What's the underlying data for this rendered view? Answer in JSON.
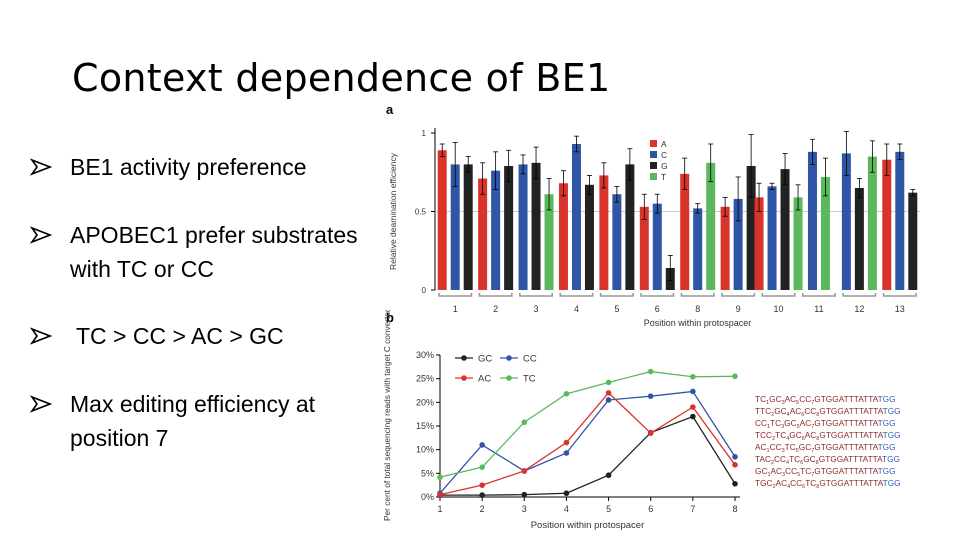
{
  "slide": {
    "title": "Context dependence of BE1",
    "bullets": [
      {
        "lines": [
          "BE1 activity preference"
        ]
      },
      {
        "lines": [
          "APOBEC1 prefer substrates",
          "with TC or CC"
        ]
      },
      {
        "lines": [
          " TC > CC > AC > GC"
        ]
      },
      {
        "lines": [
          "Max editing efficiency at",
          "position 7"
        ]
      }
    ]
  },
  "colors": {
    "A": "#d9342b",
    "C": "#2f56a6",
    "G": "#222222",
    "T": "#5cb85c",
    "bracket": "#999999",
    "seq_black": "#8a2a2a",
    "seq_blue": "#2f5fb0"
  },
  "chart_data": [
    {
      "panel": "a",
      "type": "bar",
      "ylabel": "Relative deamination efficiency",
      "xlabel": "Position within protospacer",
      "ylim": [
        0,
        1
      ],
      "yticks": [
        "0",
        "0.5",
        "1"
      ],
      "groups": [
        "1",
        "2",
        "3",
        "4",
        "5",
        "6",
        "8",
        "9",
        "10",
        "11",
        "12",
        "13"
      ],
      "legend": [
        "A",
        "C",
        "G",
        "T"
      ],
      "series": [
        {
          "name": "A",
          "values": [
            0.89,
            0.71,
            null,
            0.68,
            0.73,
            0.53,
            0.74,
            0.53,
            0.59,
            null,
            null,
            0.83
          ]
        },
        {
          "name": "C",
          "values": [
            0.8,
            0.76,
            0.8,
            0.93,
            0.61,
            0.55,
            0.52,
            0.58,
            0.66,
            0.88,
            0.87,
            0.88
          ]
        },
        {
          "name": "G",
          "values": [
            0.8,
            0.79,
            0.81,
            0.67,
            0.8,
            0.14,
            null,
            0.79,
            0.77,
            null,
            0.65,
            0.62
          ]
        },
        {
          "name": "T",
          "values": [
            null,
            null,
            0.61,
            null,
            null,
            null,
            0.81,
            null,
            0.59,
            0.72,
            0.85,
            null
          ]
        }
      ],
      "errors": [
        {
          "name": "A",
          "values": [
            0.04,
            0.1,
            null,
            0.08,
            0.08,
            0.08,
            0.1,
            0.06,
            0.09,
            null,
            null,
            0.1
          ]
        },
        {
          "name": "C",
          "values": [
            0.14,
            0.12,
            0.06,
            0.05,
            0.05,
            0.06,
            0.03,
            0.14,
            0.02,
            0.08,
            0.14,
            0.05
          ]
        },
        {
          "name": "G",
          "values": [
            0.05,
            0.1,
            0.1,
            0.06,
            0.1,
            0.08,
            null,
            0.2,
            0.1,
            null,
            0.06,
            0.02
          ]
        },
        {
          "name": "T",
          "values": [
            null,
            null,
            0.1,
            null,
            null,
            null,
            0.12,
            null,
            0.08,
            0.12,
            0.1,
            null
          ]
        }
      ]
    },
    {
      "panel": "b",
      "type": "line",
      "ylabel": "Per cent of total sequencing reads with target C converted to T",
      "xlabel": "Position within protospacer",
      "x": [
        1,
        2,
        3,
        4,
        5,
        6,
        7,
        8
      ],
      "ylim": [
        0,
        30
      ],
      "yticks": [
        "0%",
        "5%",
        "10%",
        "15%",
        "20%",
        "25%",
        "30%"
      ],
      "legend": [
        "GC",
        "CC",
        "AC",
        "TC"
      ],
      "series": [
        {
          "name": "GC",
          "color": "#222222",
          "values": [
            0.4,
            0.4,
            0.5,
            0.8,
            4.6,
            13.6,
            17.0,
            2.8
          ]
        },
        {
          "name": "CC",
          "color": "#2f56a6",
          "values": [
            0.8,
            11.0,
            5.5,
            9.3,
            20.5,
            21.3,
            22.3,
            8.5
          ]
        },
        {
          "name": "AC",
          "color": "#d9342b",
          "values": [
            0.5,
            2.5,
            5.5,
            11.5,
            22.0,
            13.5,
            19.0,
            6.8
          ]
        },
        {
          "name": "TC",
          "color": "#5cb85c",
          "values": [
            4.2,
            6.3,
            15.8,
            21.8,
            24.2,
            26.5,
            25.4,
            25.5
          ]
        }
      ],
      "sequences": [
        {
          "parts": [
            [
              "TC",
              ""
            ],
            [
              "1",
              ""
            ],
            [
              "GC",
              ""
            ],
            [
              "3",
              ""
            ],
            [
              "AC",
              ""
            ],
            [
              "5",
              ""
            ],
            [
              "CC",
              ""
            ],
            [
              "7",
              ""
            ],
            [
              "GTGGATTTATTA",
              ""
            ],
            [
              "TGG",
              "blue"
            ]
          ]
        },
        {
          "parts": [
            [
              "TTC",
              ""
            ],
            [
              "2",
              ""
            ],
            [
              "GC",
              ""
            ],
            [
              "4",
              ""
            ],
            [
              "AC",
              ""
            ],
            [
              "6",
              ""
            ],
            [
              "CC",
              ""
            ],
            [
              "8",
              ""
            ],
            [
              "GTGGATTTATTA",
              ""
            ],
            [
              "TGG",
              "blue"
            ]
          ]
        },
        {
          "parts": [
            [
              "CC",
              ""
            ],
            [
              "1",
              ""
            ],
            [
              "TC",
              ""
            ],
            [
              "3",
              ""
            ],
            [
              "GC",
              ""
            ],
            [
              "5",
              ""
            ],
            [
              "AC",
              ""
            ],
            [
              "7",
              ""
            ],
            [
              "GTGGATTTATTA",
              ""
            ],
            [
              "TGG",
              "blue"
            ]
          ]
        },
        {
          "parts": [
            [
              "TCC",
              ""
            ],
            [
              "2",
              ""
            ],
            [
              "TC",
              ""
            ],
            [
              "4",
              ""
            ],
            [
              "GC",
              ""
            ],
            [
              "6",
              ""
            ],
            [
              "AC",
              ""
            ],
            [
              "8",
              ""
            ],
            [
              "GTGGATTTATTA",
              ""
            ],
            [
              "TGG",
              "blue"
            ]
          ]
        },
        {
          "parts": [
            [
              "AC",
              ""
            ],
            [
              "1",
              ""
            ],
            [
              "CC",
              ""
            ],
            [
              "3",
              ""
            ],
            [
              "TC",
              ""
            ],
            [
              "5",
              ""
            ],
            [
              "GC",
              ""
            ],
            [
              "7",
              ""
            ],
            [
              "GTGGATTTATTA",
              ""
            ],
            [
              "TGG",
              "blue"
            ]
          ]
        },
        {
          "parts": [
            [
              "TAC",
              ""
            ],
            [
              "2",
              ""
            ],
            [
              "CC",
              ""
            ],
            [
              "4",
              ""
            ],
            [
              "TC",
              ""
            ],
            [
              "6",
              ""
            ],
            [
              "GC",
              ""
            ],
            [
              "8",
              ""
            ],
            [
              "GTGGATTTATTA",
              ""
            ],
            [
              "TGG",
              "blue"
            ]
          ]
        },
        {
          "parts": [
            [
              "GC",
              ""
            ],
            [
              "1",
              ""
            ],
            [
              "AC",
              ""
            ],
            [
              "3",
              ""
            ],
            [
              "CC",
              ""
            ],
            [
              "5",
              ""
            ],
            [
              "TC",
              ""
            ],
            [
              "7",
              ""
            ],
            [
              "GTGGATTTATTA",
              ""
            ],
            [
              "TGG",
              "blue"
            ]
          ]
        },
        {
          "parts": [
            [
              "TGC",
              ""
            ],
            [
              "2",
              ""
            ],
            [
              "AC",
              ""
            ],
            [
              "4",
              ""
            ],
            [
              "CC",
              ""
            ],
            [
              "6",
              ""
            ],
            [
              "TC",
              ""
            ],
            [
              "8",
              ""
            ],
            [
              "GTGGATTTATTA",
              ""
            ],
            [
              "TGG",
              "blue"
            ]
          ]
        }
      ]
    }
  ]
}
